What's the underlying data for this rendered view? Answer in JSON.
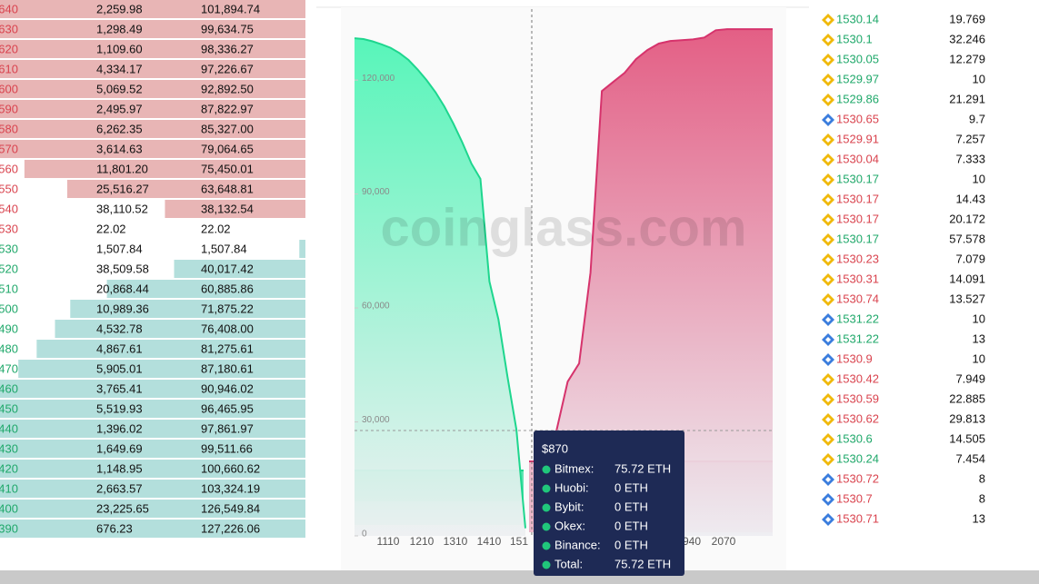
{
  "order_book": {
    "asks": [
      {
        "price": "640",
        "amount": "2,259.98",
        "total": "101,894.74",
        "depth": 100
      },
      {
        "price": "630",
        "amount": "1,298.49",
        "total": "99,634.75",
        "depth": 100
      },
      {
        "price": "620",
        "amount": "1,109.60",
        "total": "98,336.27",
        "depth": 100
      },
      {
        "price": "610",
        "amount": "4,334.17",
        "total": "97,226.67",
        "depth": 100
      },
      {
        "price": "600",
        "amount": "5,069.52",
        "total": "92,892.50",
        "depth": 100
      },
      {
        "price": "590",
        "amount": "2,495.97",
        "total": "87,822.97",
        "depth": 100
      },
      {
        "price": "580",
        "amount": "6,262.35",
        "total": "85,327.00",
        "depth": 100
      },
      {
        "price": "570",
        "amount": "3,614.63",
        "total": "79,064.65",
        "depth": 100
      },
      {
        "price": "560",
        "amount": "11,801.20",
        "total": "75,450.01",
        "depth": 92
      },
      {
        "price": "550",
        "amount": "25,516.27",
        "total": "63,648.81",
        "depth": 78
      },
      {
        "price": "540",
        "amount": "38,110.52",
        "total": "38,132.54",
        "depth": 46
      },
      {
        "price": "530",
        "amount": "22.02",
        "total": "22.02",
        "depth": 0
      }
    ],
    "bids": [
      {
        "price": "530",
        "amount": "1,507.84",
        "total": "1,507.84",
        "depth": 2
      },
      {
        "price": "520",
        "amount": "38,509.58",
        "total": "40,017.42",
        "depth": 43
      },
      {
        "price": "510",
        "amount": "20,868.44",
        "total": "60,885.86",
        "depth": 65
      },
      {
        "price": "500",
        "amount": "10,989.36",
        "total": "71,875.22",
        "depth": 77
      },
      {
        "price": "490",
        "amount": "4,532.78",
        "total": "76,408.00",
        "depth": 82
      },
      {
        "price": "480",
        "amount": "4,867.61",
        "total": "81,275.61",
        "depth": 88
      },
      {
        "price": "470",
        "amount": "5,905.01",
        "total": "87,180.61",
        "depth": 94
      },
      {
        "price": "460",
        "amount": "3,765.41",
        "total": "90,946.02",
        "depth": 100
      },
      {
        "price": "450",
        "amount": "5,519.93",
        "total": "96,465.95",
        "depth": 100
      },
      {
        "price": "440",
        "amount": "1,396.02",
        "total": "97,861.97",
        "depth": 100
      },
      {
        "price": "430",
        "amount": "1,649.69",
        "total": "99,511.66",
        "depth": 100
      },
      {
        "price": "420",
        "amount": "1,148.95",
        "total": "100,660.62",
        "depth": 100
      },
      {
        "price": "410",
        "amount": "2,663.57",
        "total": "103,324.19",
        "depth": 100
      },
      {
        "price": "400",
        "amount": "23,225.65",
        "total": "126,549.84",
        "depth": 100
      },
      {
        "price": "390",
        "amount": "676.23",
        "total": "127,226.06",
        "depth": 100
      }
    ]
  },
  "chart_data": {
    "type": "area",
    "watermark": "coinglass.com",
    "ylim": [
      0,
      133900
    ],
    "yticks": [
      0,
      {
        "value": 30000,
        "label": "30,000"
      },
      {
        "value": 60000,
        "label": "60,000"
      },
      {
        "value": 90000,
        "label": "90,000"
      },
      {
        "value": 120000,
        "label": "120,000"
      }
    ],
    "xticks": [
      "1110",
      "1210",
      "1310",
      "1410",
      "151",
      "940",
      "2070"
    ],
    "series": [
      {
        "color": "#1ed68e",
        "values": [
          131000,
          130800,
          130200,
          129400,
          128500,
          127100,
          125300,
          122800,
          120000,
          116800,
          113000,
          108500,
          103500,
          98000,
          94000,
          67000,
          57000,
          42000,
          28000,
          2000
        ]
      },
      {
        "color": "#d6336c",
        "values": [
          27500,
          40600,
          45400,
          69300,
          117100,
          119500,
          121900,
          125500,
          127900,
          129600,
          130300,
          130500,
          130700,
          131200,
          133100,
          133400,
          133400,
          133400,
          133400,
          133400
        ]
      }
    ],
    "tooltip": {
      "title": "$870",
      "rows": [
        {
          "label": "Bitmex:",
          "value": "75.72 ETH"
        },
        {
          "label": "Huobi:",
          "value": "0 ETH"
        },
        {
          "label": "Bybit:",
          "value": "0 ETH"
        },
        {
          "label": "Okex:",
          "value": "0 ETH"
        },
        {
          "label": "Binance:",
          "value": "0 ETH"
        },
        {
          "label": "Total:",
          "value": "75.72 ETH"
        }
      ]
    }
  },
  "trades": [
    {
      "price": "1530.14",
      "amount": "19.769",
      "side": "buy",
      "exchange": "binance"
    },
    {
      "price": "1530.1",
      "amount": "32.246",
      "side": "buy",
      "exchange": "binance"
    },
    {
      "price": "1530.05",
      "amount": "12.279",
      "side": "buy",
      "exchange": "binance"
    },
    {
      "price": "1529.97",
      "amount": "10",
      "side": "buy",
      "exchange": "binance"
    },
    {
      "price": "1529.86",
      "amount": "21.291",
      "side": "buy",
      "exchange": "binance"
    },
    {
      "price": "1530.65",
      "amount": "9.7",
      "side": "sell",
      "exchange": "other"
    },
    {
      "price": "1529.91",
      "amount": "7.257",
      "side": "sell",
      "exchange": "binance"
    },
    {
      "price": "1530.04",
      "amount": "7.333",
      "side": "sell",
      "exchange": "binance"
    },
    {
      "price": "1530.17",
      "amount": "10",
      "side": "buy",
      "exchange": "binance"
    },
    {
      "price": "1530.17",
      "amount": "14.43",
      "side": "sell",
      "exchange": "binance"
    },
    {
      "price": "1530.17",
      "amount": "20.172",
      "side": "sell",
      "exchange": "binance"
    },
    {
      "price": "1530.17",
      "amount": "57.578",
      "side": "buy",
      "exchange": "binance"
    },
    {
      "price": "1530.23",
      "amount": "7.079",
      "side": "sell",
      "exchange": "binance"
    },
    {
      "price": "1530.31",
      "amount": "14.091",
      "side": "sell",
      "exchange": "binance"
    },
    {
      "price": "1530.74",
      "amount": "13.527",
      "side": "sell",
      "exchange": "binance"
    },
    {
      "price": "1531.22",
      "amount": "10",
      "side": "buy",
      "exchange": "other"
    },
    {
      "price": "1531.22",
      "amount": "13",
      "side": "buy",
      "exchange": "other"
    },
    {
      "price": "1530.9",
      "amount": "10",
      "side": "sell",
      "exchange": "other"
    },
    {
      "price": "1530.42",
      "amount": "7.949",
      "side": "sell",
      "exchange": "binance"
    },
    {
      "price": "1530.59",
      "amount": "22.885",
      "side": "sell",
      "exchange": "binance"
    },
    {
      "price": "1530.62",
      "amount": "29.813",
      "side": "sell",
      "exchange": "binance"
    },
    {
      "price": "1530.6",
      "amount": "14.505",
      "side": "buy",
      "exchange": "binance"
    },
    {
      "price": "1530.24",
      "amount": "7.454",
      "side": "buy",
      "exchange": "binance"
    },
    {
      "price": "1530.72",
      "amount": "8",
      "side": "sell",
      "exchange": "other"
    },
    {
      "price": "1530.7",
      "amount": "8",
      "side": "sell",
      "exchange": "other"
    },
    {
      "price": "1530.71",
      "amount": "13",
      "side": "sell",
      "exchange": "other"
    }
  ]
}
